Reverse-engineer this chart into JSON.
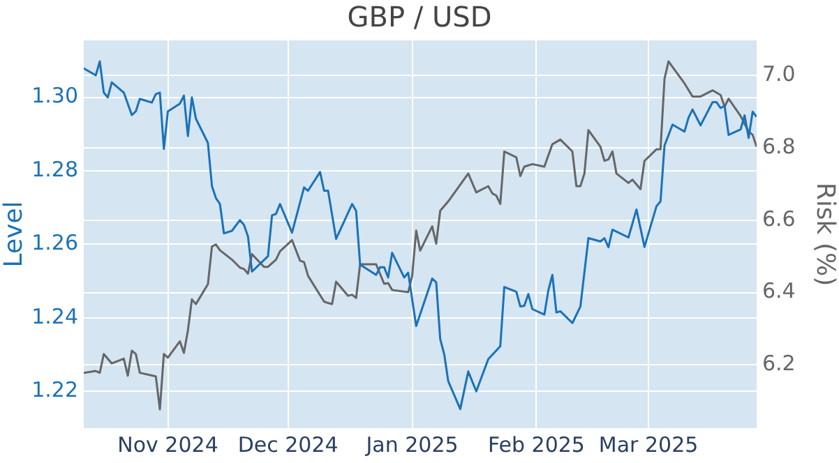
{
  "chart_data": {
    "type": "line",
    "title": "GBP / USD",
    "ylabel": "Level",
    "y2label": "Risk (%)",
    "xlim": [
      "2024-10-11",
      "2025-03-28"
    ],
    "xticks": [
      {
        "value": "2024-11-01",
        "label": "Nov 2024"
      },
      {
        "value": "2024-12-01",
        "label": "Dec 2024"
      },
      {
        "value": "2025-01-01",
        "label": "Jan 2025"
      },
      {
        "value": "2025-02-01",
        "label": "Feb 2025"
      },
      {
        "value": "2025-03-01",
        "label": "Mar 2025"
      }
    ],
    "ylim": [
      1.21,
      1.3155
    ],
    "yticks": [
      1.22,
      1.24,
      1.26,
      1.28,
      {
        "value": 1.3,
        "label": "1.30"
      }
    ],
    "y2lim": [
      6.025,
      7.097
    ],
    "y2ticks": [
      6.2,
      6.4,
      6.6,
      6.8,
      {
        "value": 7,
        "label": "7.0"
      }
    ],
    "grid": true,
    "legend": false,
    "marker": "none",
    "line_style": "solid",
    "series": [
      {
        "color": "#1a72b8",
        "x": [
          "2024-10-11",
          "2024-10-14",
          "2024-10-15",
          "2024-10-16",
          "2024-10-17",
          "2024-10-18",
          "2024-10-21",
          "2024-10-23",
          "2024-10-24",
          "2024-10-25",
          "2024-10-28",
          "2024-10-29",
          "2024-10-30",
          "2024-10-31",
          "2024-11-01",
          "2024-11-04",
          "2024-11-05",
          "2024-11-06",
          "2024-11-07",
          "2024-11-08",
          "2024-11-11",
          "2024-11-12",
          "2024-11-13",
          "2024-11-14",
          "2024-11-15",
          "2024-11-17",
          "2024-11-19",
          "2024-11-20",
          "2024-11-21",
          "2024-11-22",
          "2024-11-26",
          "2024-11-27",
          "2024-11-28",
          "2024-11-29",
          "2024-12-02",
          "2024-12-05",
          "2024-12-06",
          "2024-12-09",
          "2024-12-10",
          "2024-12-11",
          "2024-12-13",
          "2024-12-17",
          "2024-12-18",
          "2024-12-19",
          "2024-12-23",
          "2024-12-24",
          "2024-12-25",
          "2024-12-26",
          "2024-12-27",
          "2024-12-30",
          "2024-12-31",
          "2025-01-02",
          "2025-01-06",
          "2025-01-07",
          "2025-01-08",
          "2025-01-09",
          "2025-01-10",
          "2025-01-13",
          "2025-01-15",
          "2025-01-17",
          "2025-01-20",
          "2025-01-22",
          "2025-01-23",
          "2025-01-24",
          "2025-01-27",
          "2025-01-28",
          "2025-01-29",
          "2025-01-30",
          "2025-01-31",
          "2025-02-03",
          "2025-02-04",
          "2025-02-05",
          "2025-02-06",
          "2025-02-07",
          "2025-02-10",
          "2025-02-12",
          "2025-02-14",
          "2025-02-17",
          "2025-02-18",
          "2025-02-19",
          "2025-02-20",
          "2025-02-24",
          "2025-02-26",
          "2025-02-28",
          "2025-03-03",
          "2025-03-04",
          "2025-03-05",
          "2025-03-07",
          "2025-03-10",
          "2025-03-11",
          "2025-03-12",
          "2025-03-14",
          "2025-03-17",
          "2025-03-18",
          "2025-03-19",
          "2025-03-20",
          "2025-03-21",
          "2025-03-24",
          "2025-03-25",
          "2025-03-26",
          "2025-03-27",
          "2025-03-28"
        ],
        "values": [
          1.3079,
          1.306,
          1.3098,
          1.3013,
          1.3,
          1.3041,
          1.3013,
          1.2952,
          1.2962,
          1.2996,
          1.2986,
          1.3009,
          1.3013,
          1.286,
          1.2962,
          1.2983,
          1.3005,
          1.2895,
          1.3,
          1.2942,
          1.2876,
          1.2759,
          1.2726,
          1.271,
          1.263,
          1.2637,
          1.2666,
          1.2653,
          1.2622,
          1.2526,
          1.2568,
          1.2679,
          1.2683,
          1.271,
          1.2632,
          1.2755,
          1.2746,
          1.2797,
          1.2746,
          1.2746,
          1.2615,
          1.271,
          1.2691,
          1.2545,
          1.2517,
          1.2538,
          1.2538,
          1.251,
          1.2577,
          1.251,
          1.2523,
          1.2378,
          1.2507,
          1.2497,
          1.2342,
          1.2301,
          1.2228,
          1.2152,
          1.2254,
          1.22,
          1.2288,
          1.2311,
          1.2323,
          1.2484,
          1.2471,
          1.2431,
          1.2433,
          1.2465,
          1.2424,
          1.2409,
          1.2475,
          1.2517,
          1.2415,
          1.2418,
          1.2386,
          1.2431,
          1.2617,
          1.2608,
          1.2617,
          1.2592,
          1.264,
          1.2619,
          1.2695,
          1.2593,
          1.2704,
          1.2717,
          1.2869,
          1.2926,
          1.2907,
          1.2945,
          1.2967,
          1.2924,
          1.2987,
          1.2987,
          1.2971,
          1.2977,
          1.2898,
          1.2913,
          1.2951,
          1.289,
          1.2961,
          1.2947
        ]
      },
      {
        "color": "#666666",
        "axis": "y2",
        "x": [
          "2024-10-11",
          "2024-10-14",
          "2024-10-15",
          "2024-10-16",
          "2024-10-18",
          "2024-10-21",
          "2024-10-22",
          "2024-10-23",
          "2024-10-24",
          "2024-10-25",
          "2024-10-29",
          "2024-10-30",
          "2024-10-31",
          "2024-11-01",
          "2024-11-04",
          "2024-11-05",
          "2024-11-06",
          "2024-11-07",
          "2024-11-08",
          "2024-11-11",
          "2024-11-12",
          "2024-11-13",
          "2024-11-14",
          "2024-11-17",
          "2024-11-19",
          "2024-11-20",
          "2024-11-21",
          "2024-11-22",
          "2024-11-25",
          "2024-11-26",
          "2024-11-28",
          "2024-11-29",
          "2024-12-02",
          "2024-12-04",
          "2024-12-05",
          "2024-12-06",
          "2024-12-10",
          "2024-12-11",
          "2024-12-12",
          "2024-12-13",
          "2024-12-16",
          "2024-12-17",
          "2024-12-18",
          "2024-12-19",
          "2024-12-23",
          "2024-12-25",
          "2024-12-26",
          "2024-12-27",
          "2024-12-31",
          "2025-01-01",
          "2025-01-02",
          "2025-01-03",
          "2025-01-06",
          "2025-01-07",
          "2025-01-08",
          "2025-01-10",
          "2025-01-15",
          "2025-01-17",
          "2025-01-20",
          "2025-01-21",
          "2025-01-22",
          "2025-01-23",
          "2025-01-24",
          "2025-01-27",
          "2025-01-28",
          "2025-01-29",
          "2025-01-31",
          "2025-02-03",
          "2025-02-05",
          "2025-02-07",
          "2025-02-10",
          "2025-02-11",
          "2025-02-12",
          "2025-02-13",
          "2025-02-14",
          "2025-02-17",
          "2025-02-18",
          "2025-02-19",
          "2025-02-20",
          "2025-02-21",
          "2025-02-24",
          "2025-02-25",
          "2025-02-27",
          "2025-02-28",
          "2025-03-03",
          "2025-03-04",
          "2025-03-05",
          "2025-03-06",
          "2025-03-10",
          "2025-03-12",
          "2025-03-14",
          "2025-03-17",
          "2025-03-19",
          "2025-03-20",
          "2025-03-21",
          "2025-03-24",
          "2025-03-26",
          "2025-03-27",
          "2025-03-28"
        ],
        "values": [
          6.178,
          6.183,
          6.178,
          6.23,
          6.204,
          6.217,
          6.17,
          6.239,
          6.23,
          6.178,
          6.168,
          6.077,
          6.23,
          6.22,
          6.265,
          6.233,
          6.295,
          6.381,
          6.368,
          6.423,
          6.527,
          6.533,
          6.517,
          6.491,
          6.469,
          6.465,
          6.452,
          6.506,
          6.471,
          6.471,
          6.491,
          6.514,
          6.545,
          6.488,
          6.484,
          6.446,
          6.375,
          6.371,
          6.368,
          6.43,
          6.391,
          6.394,
          6.385,
          6.478,
          6.478,
          6.424,
          6.426,
          6.407,
          6.401,
          6.446,
          6.571,
          6.516,
          6.583,
          6.535,
          6.626,
          6.652,
          6.729,
          6.677,
          6.694,
          6.674,
          6.668,
          6.645,
          6.79,
          6.774,
          6.722,
          6.748,
          6.755,
          6.748,
          6.81,
          6.823,
          6.79,
          6.694,
          6.694,
          6.729,
          6.849,
          6.803,
          6.764,
          6.768,
          6.79,
          6.729,
          6.703,
          6.712,
          6.686,
          6.764,
          6.796,
          6.796,
          6.991,
          7.039,
          6.978,
          6.942,
          6.942,
          6.959,
          6.946,
          6.914,
          6.936,
          6.888,
          6.845,
          6.836,
          6.803
        ]
      }
    ]
  }
}
